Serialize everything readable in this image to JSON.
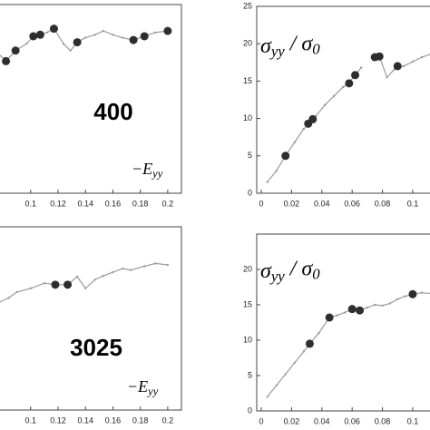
{
  "chart_data": [
    {
      "type": "line",
      "annotation": "400",
      "label": [
        {
          "text": "−E"
        },
        {
          "text": "yy",
          "sub": true
        }
      ],
      "x": [
        0.077,
        0.082,
        0.089,
        0.097,
        0.102,
        0.107,
        0.112,
        0.117,
        0.124,
        0.129,
        0.134,
        0.14,
        0.147,
        0.153,
        0.16,
        0.167,
        0.175,
        0.183,
        0.191,
        0.2
      ],
      "values": [
        18.4,
        17.5,
        18.9,
        19.8,
        20.8,
        21,
        21.3,
        21.8,
        19.8,
        18.9,
        20,
        20.6,
        21,
        21.5,
        21,
        20.6,
        20.3,
        20.8,
        21.3,
        21.5
      ],
      "marker_x": [
        0.082,
        0.089,
        0.102,
        0.107,
        0.117,
        0.134,
        0.175,
        0.183,
        0.2
      ],
      "marker_values": [
        17.5,
        18.9,
        20.8,
        21,
        21.8,
        20,
        20.3,
        20.8,
        21.5
      ],
      "color": "#9a9a9a",
      "marker_color": "#2e2e2e",
      "xlim": [
        0.077,
        0.21
      ],
      "xticks": [
        0.1,
        0.12,
        0.14,
        0.16,
        0.18,
        0.2
      ],
      "ylim": [
        0,
        25
      ]
    },
    {
      "type": "line",
      "label": [
        {
          "text": "σ"
        },
        {
          "text": "yy",
          "sub": true
        },
        {
          "text": " / σ"
        },
        {
          "text": "0",
          "sub": true
        }
      ],
      "x": [
        0.004,
        0.01,
        0.016,
        0.022,
        0.028,
        0.032,
        0.036,
        0.042,
        0.048,
        0.054,
        0.058,
        0.062,
        0.066,
        null,
        0.073,
        0.078,
        0.083,
        0.088,
        0.094,
        0.1,
        0.106,
        0.112,
        0.115
      ],
      "values": [
        1.5,
        3,
        5,
        6.8,
        8.6,
        9.4,
        10.3,
        11.8,
        13,
        14.2,
        14.8,
        15.8,
        16.8,
        null,
        18.2,
        18.3,
        15.5,
        16.6,
        17,
        17.6,
        18.2,
        18.6,
        18.7
      ],
      "marker_x": [
        0.016,
        0.031,
        0.034,
        0.058,
        0.062,
        0.075,
        0.078,
        0.09
      ],
      "marker_values": [
        5,
        9.3,
        9.9,
        14.7,
        15.8,
        18.2,
        18.3,
        17
      ],
      "color": "#9a9a9a",
      "marker_color": "#2e2e2e",
      "xlim": [
        -0.003,
        0.115
      ],
      "xticks": [
        0,
        0.02,
        0.04,
        0.06,
        0.08,
        0.1
      ],
      "ylim": [
        0,
        25
      ],
      "yticks": [
        0,
        5,
        10,
        15,
        20,
        25
      ]
    },
    {
      "type": "line",
      "annotation": "3025",
      "label": [
        {
          "text": "−E"
        },
        {
          "text": "yy",
          "sub": true
        }
      ],
      "x": [
        0.077,
        0.084,
        0.09,
        0.1,
        0.11,
        0.118,
        0.127,
        0.134,
        0.14,
        0.147,
        0.153,
        0.16,
        0.167,
        0.173,
        0.183,
        0.191,
        0.2
      ],
      "values": [
        14.7,
        15.3,
        16.1,
        16.6,
        17.3,
        17.1,
        17.1,
        18.2,
        16.6,
        17.8,
        18.3,
        18.8,
        19.3,
        19.1,
        19.6,
        20,
        19.8
      ],
      "marker_x": [
        0.118,
        0.127
      ],
      "marker_values": [
        17.1,
        17.1
      ],
      "color": "#9a9a9a",
      "marker_color": "#2e2e2e",
      "xlim": [
        0.077,
        0.21
      ],
      "xticks": [
        0.1,
        0.12,
        0.14,
        0.16,
        0.18,
        0.2
      ],
      "ylim": [
        0,
        25
      ]
    },
    {
      "type": "line",
      "label": [
        {
          "text": "σ"
        },
        {
          "text": "yy",
          "sub": true
        },
        {
          "text": " / σ"
        },
        {
          "text": "0",
          "sub": true
        }
      ],
      "x": [
        0.004,
        0.01,
        0.016,
        0.022,
        0.028,
        0.032,
        0.038,
        0.045,
        0.05,
        0.055,
        0.06,
        0.065,
        0.07,
        0.075,
        0.08,
        0.085,
        0.09,
        0.095,
        0.1,
        0.106,
        0.112
      ],
      "values": [
        2,
        3.6,
        5.2,
        6.8,
        8.4,
        9.5,
        11,
        13.2,
        13.5,
        13.9,
        14.4,
        14.2,
        14.6,
        15,
        14.9,
        15.2,
        15.8,
        16.2,
        16.5,
        16.7,
        16.6
      ],
      "marker_x": [
        0.032,
        0.045,
        0.06,
        0.065,
        0.1
      ],
      "marker_values": [
        9.5,
        13.2,
        14.4,
        14.2,
        16.5
      ],
      "color": "#9a9a9a",
      "marker_color": "#2e2e2e",
      "xlim": [
        -0.003,
        0.115
      ],
      "xticks": [
        0,
        0.02,
        0.04,
        0.06,
        0.08,
        0.1
      ],
      "ylim": [
        0,
        25
      ],
      "yticks": [
        0,
        5,
        10,
        15,
        20
      ]
    }
  ]
}
